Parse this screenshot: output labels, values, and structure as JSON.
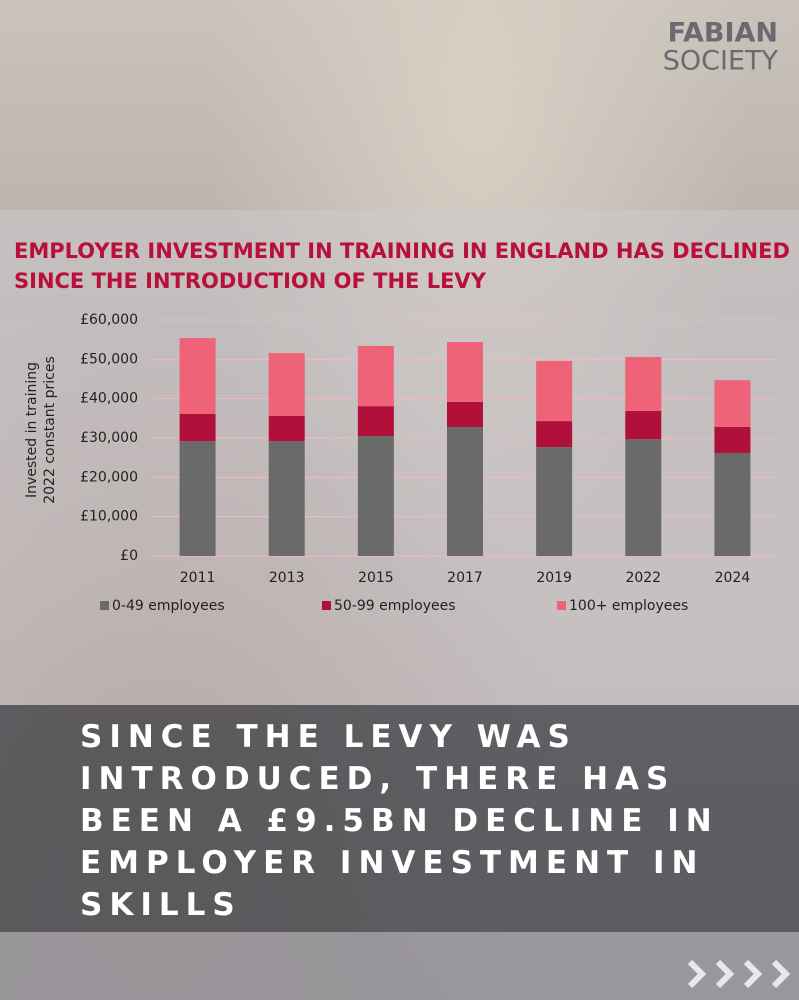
{
  "logo": {
    "line1": "FABIAN",
    "line2": "SOCIETY"
  },
  "chart_data": {
    "type": "stacked_bar",
    "title": [
      "EMPLOYER INVESTMENT IN TRAINING IN ENGLAND HAS DECLINED",
      "SINCE THE INTRODUCTION OF THE LEVY"
    ],
    "y_label": [
      "Invested in training",
      "2022 constant prices"
    ],
    "categories": [
      "2011",
      "2013",
      "2015",
      "2017",
      "2019",
      "2022",
      "2024"
    ],
    "series": [
      {
        "name": "0-49 employees",
        "color": "#6a6a6a",
        "values": [
          29200,
          29200,
          30500,
          32800,
          27700,
          29700,
          26200
        ]
      },
      {
        "name": "50-99 employees",
        "color": "#b0103a",
        "values": [
          6900,
          6400,
          7600,
          6400,
          6600,
          7200,
          6600
        ]
      },
      {
        "name": "100+ employees",
        "color": "#ef6378",
        "values": [
          19300,
          16000,
          15300,
          15200,
          15300,
          13700,
          11900
        ]
      }
    ],
    "ylim": [
      0,
      60000
    ],
    "yticks": [
      {
        "value": 0,
        "label": "£0"
      },
      {
        "value": 10000,
        "label": "£10,000"
      },
      {
        "value": 20000,
        "label": "£20,000"
      },
      {
        "value": 30000,
        "label": "£30,000"
      },
      {
        "value": 40000,
        "label": "£40,000"
      },
      {
        "value": 50000,
        "label": "£50,000"
      },
      {
        "value": 60000,
        "label": "£60,000"
      }
    ],
    "grid": true,
    "legend": "bottom"
  },
  "headline": "SINCE THE LEVY WAS INTRODUCED, THERE HAS BEEN A £9.5BN DECLINE IN EMPLOYER INVESTMENT IN SKILLS"
}
